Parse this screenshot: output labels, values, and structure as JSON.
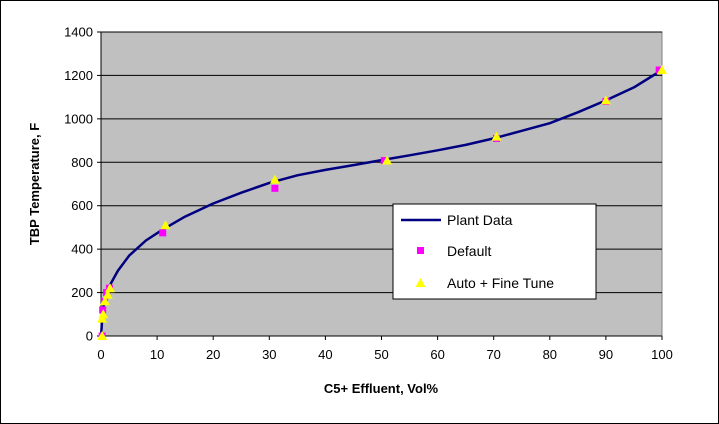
{
  "chart_data": {
    "type": "line",
    "title": "",
    "xlabel": "C5+ Effluent, Vol%",
    "ylabel": "TBP Temperature, F",
    "xlim": [
      0,
      100
    ],
    "ylim": [
      0,
      1400
    ],
    "x_ticks": [
      0,
      10,
      20,
      30,
      40,
      50,
      60,
      70,
      80,
      90,
      100
    ],
    "y_ticks": [
      0,
      200,
      400,
      600,
      800,
      1000,
      1200,
      1400
    ],
    "grid": "horizontal",
    "plot_background": "#c0c0c0",
    "legend_position": "center-right",
    "series": [
      {
        "name": "Plant Data",
        "kind": "line",
        "color": "#000080",
        "points": [
          [
            0,
            0
          ],
          [
            0.3,
            110
          ],
          [
            0.6,
            165
          ],
          [
            1,
            200
          ],
          [
            1.5,
            230
          ],
          [
            3,
            300
          ],
          [
            5,
            370
          ],
          [
            8,
            440
          ],
          [
            11,
            490
          ],
          [
            15,
            550
          ],
          [
            20,
            610
          ],
          [
            25,
            660
          ],
          [
            30,
            705
          ],
          [
            35,
            740
          ],
          [
            40,
            765
          ],
          [
            45,
            787
          ],
          [
            50,
            810
          ],
          [
            55,
            832
          ],
          [
            60,
            855
          ],
          [
            65,
            880
          ],
          [
            70,
            910
          ],
          [
            75,
            945
          ],
          [
            80,
            980
          ],
          [
            85,
            1030
          ],
          [
            90,
            1085
          ],
          [
            95,
            1145
          ],
          [
            100,
            1225
          ]
        ]
      },
      {
        "name": "Default",
        "kind": "marker",
        "marker": "square",
        "color": "#ff00ff",
        "points": [
          [
            0.2,
            0
          ],
          [
            0.3,
            120
          ],
          [
            0.6,
            160
          ],
          [
            1,
            200
          ],
          [
            1.5,
            220
          ],
          [
            11,
            475
          ],
          [
            31,
            680
          ],
          [
            50.5,
            808
          ],
          [
            70.5,
            910
          ],
          [
            90,
            1080
          ],
          [
            99.5,
            1225
          ]
        ]
      },
      {
        "name": "Auto + Fine Tune",
        "kind": "marker",
        "marker": "triangle",
        "color": "#ffff00",
        "points": [
          [
            0.2,
            0
          ],
          [
            0.2,
            80
          ],
          [
            0.4,
            100
          ],
          [
            0.7,
            160
          ],
          [
            1.2,
            190
          ],
          [
            1.6,
            220
          ],
          [
            11.5,
            510
          ],
          [
            31,
            720
          ],
          [
            51,
            808
          ],
          [
            70.5,
            918
          ],
          [
            90,
            1085
          ],
          [
            100,
            1225
          ]
        ]
      }
    ]
  }
}
